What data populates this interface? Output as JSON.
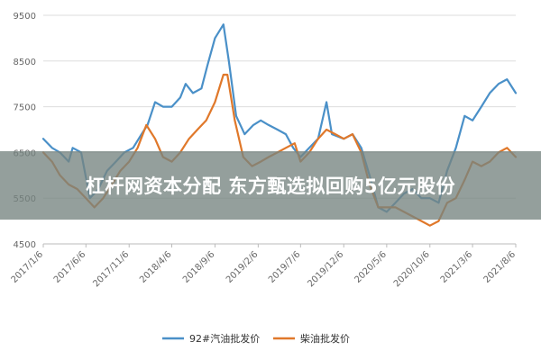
{
  "colors": {
    "series1": "#4a90c8",
    "series2": "#e0782a",
    "grid": "#dddddd",
    "axis": "#bbbbbb",
    "banner_bg": "#76847f"
  },
  "headline": "杠杆网资本分配 东方甄选拟回购5亿元股份",
  "chart_data": {
    "type": "line",
    "title": "",
    "xlabel": "",
    "ylabel": "",
    "ylim": [
      4500,
      9500
    ],
    "yticks": [
      4500,
      5500,
      6500,
      7500,
      8500,
      9500
    ],
    "xlim": [
      "2017-01-06",
      "2021-08-06"
    ],
    "xticks": [
      "2017/1/6",
      "2017/6/6",
      "2017/11/6",
      "2018/4/6",
      "2018/9/6",
      "2019/2/6",
      "2019/7/6",
      "2019/12/6",
      "2020/5/6",
      "2020/10/6",
      "2021/3/6",
      "2021/8/6"
    ],
    "grid": "horizontal",
    "legend": "bottom",
    "series": [
      {
        "name": "92#汽油批发价",
        "points": [
          [
            "2017-01-06",
            6800
          ],
          [
            "2017-02-06",
            6600
          ],
          [
            "2017-03-06",
            6500
          ],
          [
            "2017-04-06",
            6300
          ],
          [
            "2017-04-20",
            6600
          ],
          [
            "2017-05-20",
            6500
          ],
          [
            "2017-06-20",
            5500
          ],
          [
            "2017-07-20",
            5700
          ],
          [
            "2017-08-20",
            6100
          ],
          [
            "2017-09-20",
            6300
          ],
          [
            "2017-10-20",
            6500
          ],
          [
            "2017-11-20",
            6600
          ],
          [
            "2017-12-20",
            6900
          ],
          [
            "2018-01-10",
            7100
          ],
          [
            "2018-02-06",
            7600
          ],
          [
            "2018-03-06",
            7500
          ],
          [
            "2018-04-06",
            7500
          ],
          [
            "2018-05-06",
            7700
          ],
          [
            "2018-05-25",
            8000
          ],
          [
            "2018-06-20",
            7800
          ],
          [
            "2018-07-20",
            7900
          ],
          [
            "2018-08-10",
            8400
          ],
          [
            "2018-09-06",
            9000
          ],
          [
            "2018-10-06",
            9300
          ],
          [
            "2018-10-25",
            8500
          ],
          [
            "2018-11-20",
            7300
          ],
          [
            "2018-12-20",
            6900
          ],
          [
            "2019-01-20",
            7100
          ],
          [
            "2019-02-15",
            7200
          ],
          [
            "2019-03-15",
            7100
          ],
          [
            "2019-04-15",
            7000
          ],
          [
            "2019-05-15",
            6900
          ],
          [
            "2019-06-10",
            6600
          ],
          [
            "2019-07-06",
            6400
          ],
          [
            "2019-08-06",
            6600
          ],
          [
            "2019-09-06",
            6800
          ],
          [
            "2019-10-06",
            7600
          ],
          [
            "2019-10-25",
            6900
          ],
          [
            "2019-12-06",
            6800
          ],
          [
            "2020-01-06",
            6900
          ],
          [
            "2020-02-06",
            6600
          ],
          [
            "2020-03-06",
            6000
          ],
          [
            "2020-04-06",
            5300
          ],
          [
            "2020-05-06",
            5200
          ],
          [
            "2020-06-06",
            5400
          ],
          [
            "2020-07-06",
            5600
          ],
          [
            "2020-08-06",
            5700
          ],
          [
            "2020-09-06",
            5500
          ],
          [
            "2020-10-06",
            5500
          ],
          [
            "2020-11-06",
            5400
          ],
          [
            "2020-12-06",
            6100
          ],
          [
            "2021-01-06",
            6600
          ],
          [
            "2021-02-06",
            7300
          ],
          [
            "2021-03-06",
            7200
          ],
          [
            "2021-04-06",
            7500
          ],
          [
            "2021-05-06",
            7800
          ],
          [
            "2021-06-06",
            8000
          ],
          [
            "2021-07-06",
            8100
          ],
          [
            "2021-08-06",
            7800
          ]
        ]
      },
      {
        "name": "柴油批发价",
        "points": [
          [
            "2017-01-06",
            6500
          ],
          [
            "2017-02-06",
            6300
          ],
          [
            "2017-03-06",
            6000
          ],
          [
            "2017-04-06",
            5800
          ],
          [
            "2017-05-06",
            5700
          ],
          [
            "2017-06-06",
            5500
          ],
          [
            "2017-07-06",
            5300
          ],
          [
            "2017-08-06",
            5500
          ],
          [
            "2017-09-06",
            5800
          ],
          [
            "2017-10-06",
            6100
          ],
          [
            "2017-11-06",
            6300
          ],
          [
            "2017-12-06",
            6600
          ],
          [
            "2018-01-06",
            7100
          ],
          [
            "2018-02-06",
            6800
          ],
          [
            "2018-03-06",
            6400
          ],
          [
            "2018-04-06",
            6300
          ],
          [
            "2018-05-06",
            6500
          ],
          [
            "2018-06-06",
            6800
          ],
          [
            "2018-07-06",
            7000
          ],
          [
            "2018-08-06",
            7200
          ],
          [
            "2018-09-06",
            7600
          ],
          [
            "2018-10-06",
            8200
          ],
          [
            "2018-10-20",
            8200
          ],
          [
            "2018-11-15",
            7200
          ],
          [
            "2018-12-15",
            6400
          ],
          [
            "2019-01-15",
            6200
          ],
          [
            "2019-02-15",
            6300
          ],
          [
            "2019-03-15",
            6400
          ],
          [
            "2019-04-15",
            6500
          ],
          [
            "2019-05-15",
            6600
          ],
          [
            "2019-06-15",
            6700
          ],
          [
            "2019-07-06",
            6300
          ],
          [
            "2019-08-06",
            6500
          ],
          [
            "2019-09-06",
            6800
          ],
          [
            "2019-10-06",
            7000
          ],
          [
            "2019-11-06",
            6900
          ],
          [
            "2019-12-06",
            6800
          ],
          [
            "2020-01-06",
            6900
          ],
          [
            "2020-02-06",
            6500
          ],
          [
            "2020-03-06",
            5800
          ],
          [
            "2020-04-06",
            5300
          ],
          [
            "2020-05-06",
            5300
          ],
          [
            "2020-06-06",
            5300
          ],
          [
            "2020-07-06",
            5200
          ],
          [
            "2020-08-06",
            5100
          ],
          [
            "2020-09-06",
            5000
          ],
          [
            "2020-10-06",
            4900
          ],
          [
            "2020-11-06",
            5000
          ],
          [
            "2020-12-06",
            5400
          ],
          [
            "2021-01-06",
            5500
          ],
          [
            "2021-02-06",
            5900
          ],
          [
            "2021-03-06",
            6300
          ],
          [
            "2021-04-06",
            6200
          ],
          [
            "2021-05-06",
            6300
          ],
          [
            "2021-06-06",
            6500
          ],
          [
            "2021-07-06",
            6600
          ],
          [
            "2021-08-06",
            6400
          ]
        ]
      }
    ]
  }
}
